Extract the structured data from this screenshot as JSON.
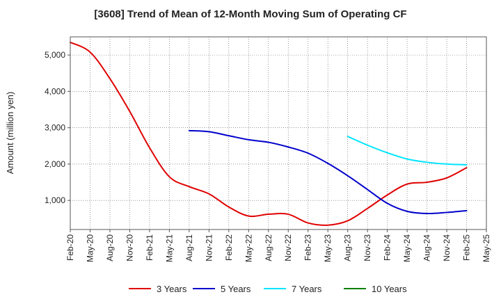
{
  "chart_data": {
    "type": "line",
    "title": "[3608]  Trend of Mean of 12-Month Moving Sum of Operating CF",
    "xlabel": "",
    "ylabel": "Amount (million yen)",
    "ylim": [
      200,
      5500
    ],
    "yticks": [
      1000,
      2000,
      3000,
      4000,
      5000
    ],
    "ytick_labels": [
      "1,000",
      "2,000",
      "3,000",
      "4,000",
      "5,000"
    ],
    "grid": true,
    "legend_position": "bottom",
    "x_labels": [
      "Feb-20",
      "May-20",
      "Aug-20",
      "Nov-20",
      "Feb-21",
      "May-21",
      "Aug-21",
      "Nov-21",
      "Feb-22",
      "May-22",
      "Aug-22",
      "Nov-22",
      "Feb-23",
      "May-23",
      "Aug-23",
      "Nov-23",
      "Feb-24",
      "May-24",
      "Aug-24",
      "Nov-24",
      "Feb-25",
      "May-25"
    ],
    "series": [
      {
        "name": "3 Years",
        "color": "#e00000",
        "points": [
          [
            0,
            5350
          ],
          [
            1,
            5080
          ],
          [
            2,
            4350
          ],
          [
            3,
            3450
          ],
          [
            4,
            2450
          ],
          [
            5,
            1650
          ],
          [
            6,
            1380
          ],
          [
            7,
            1180
          ],
          [
            8,
            820
          ],
          [
            9,
            570
          ],
          [
            10,
            620
          ],
          [
            11,
            620
          ],
          [
            12,
            380
          ],
          [
            13,
            320
          ],
          [
            14,
            440
          ],
          [
            15,
            780
          ],
          [
            16,
            1150
          ],
          [
            17,
            1450
          ],
          [
            18,
            1500
          ],
          [
            19,
            1620
          ],
          [
            20,
            1900
          ]
        ]
      },
      {
        "name": "5 Years",
        "color": "#0000cc",
        "points": [
          [
            6,
            2920
          ],
          [
            7,
            2890
          ],
          [
            8,
            2780
          ],
          [
            9,
            2670
          ],
          [
            10,
            2600
          ],
          [
            11,
            2470
          ],
          [
            12,
            2300
          ],
          [
            13,
            2020
          ],
          [
            14,
            1680
          ],
          [
            15,
            1300
          ],
          [
            16,
            920
          ],
          [
            17,
            700
          ],
          [
            18,
            640
          ],
          [
            19,
            670
          ],
          [
            20,
            720
          ]
        ]
      },
      {
        "name": "7 Years",
        "color": "#00e5ff",
        "points": [
          [
            14,
            2760
          ],
          [
            15,
            2520
          ],
          [
            16,
            2310
          ],
          [
            17,
            2140
          ],
          [
            18,
            2050
          ],
          [
            19,
            2000
          ],
          [
            20,
            1980
          ]
        ]
      },
      {
        "name": "10 Years",
        "color": "#008000",
        "points": []
      }
    ]
  }
}
